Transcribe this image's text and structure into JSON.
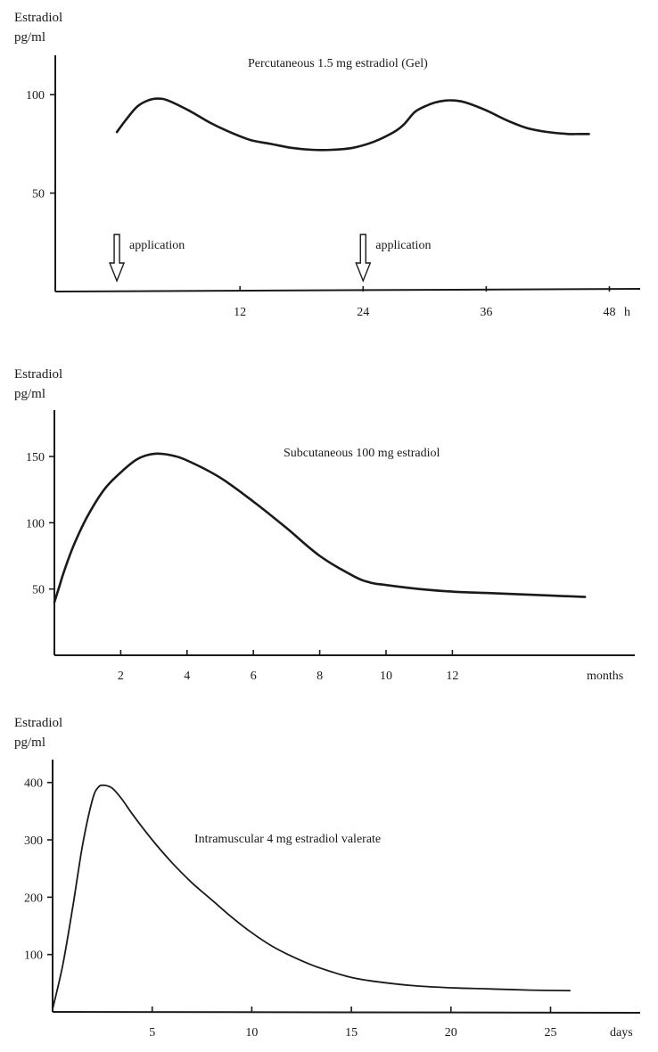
{
  "chart_data": [
    {
      "type": "line",
      "title": "Percutaneous 1.5 mg estradiol (Gel)",
      "ylabel_line1": "Estradiol",
      "ylabel_line2": "pg/ml",
      "xunit": "h",
      "xlim": [
        -6,
        51
      ],
      "ylim": [
        0,
        120
      ],
      "xticks": [
        12,
        24,
        36,
        48
      ],
      "yticks": [
        50,
        100
      ],
      "series": [
        {
          "x": [
            0,
            1,
            2,
            3,
            4,
            5,
            7,
            9,
            11,
            13,
            15,
            17,
            19,
            21,
            23,
            25,
            27,
            28,
            29,
            30,
            31,
            32,
            33,
            34,
            36,
            38,
            40,
            42,
            44,
            45,
            46
          ],
          "y": [
            81,
            88,
            94,
            97,
            98,
            97,
            92,
            86,
            81,
            77,
            75,
            73,
            72,
            72,
            73,
            76,
            81,
            85,
            91,
            94,
            96,
            97,
            97,
            96,
            92,
            87,
            83,
            81,
            80,
            80,
            80
          ]
        }
      ],
      "annotations": [
        {
          "text": "application",
          "x": 0
        },
        {
          "text": "application",
          "x": 24
        }
      ]
    },
    {
      "type": "line",
      "title": "Subcutaneous 100 mg estradiol",
      "ylabel_line1": "Estradiol",
      "ylabel_line2": "pg/ml",
      "xunit": "months",
      "xlim": [
        0,
        17.5
      ],
      "ylim": [
        0,
        185
      ],
      "xticks": [
        2,
        4,
        6,
        8,
        10,
        12
      ],
      "yticks": [
        50,
        100,
        150
      ],
      "series": [
        {
          "x": [
            0,
            0.15,
            0.3,
            0.6,
            1,
            1.5,
            2,
            2.5,
            3,
            3.5,
            4,
            5,
            6,
            7,
            8,
            9,
            9.5,
            10,
            11,
            12,
            13,
            14,
            15,
            16
          ],
          "y": [
            40,
            52,
            64,
            84,
            105,
            125,
            138,
            148,
            152,
            151,
            147,
            134,
            116,
            96,
            75,
            60,
            55,
            53,
            50,
            48,
            47,
            46,
            45,
            44
          ]
        }
      ]
    },
    {
      "type": "line",
      "title": "Intramuscular 4 mg estradiol valerate",
      "ylabel_line1": "Estradiol",
      "ylabel_line2": "pg/ml",
      "xunit": "days",
      "xlim": [
        0,
        29.5
      ],
      "ylim": [
        0,
        440
      ],
      "xticks": [
        5,
        10,
        15,
        20,
        25
      ],
      "yticks": [
        100,
        200,
        300,
        400
      ],
      "series": [
        {
          "x": [
            0,
            0.5,
            1,
            1.5,
            2,
            2.3,
            2.6,
            3,
            3.5,
            4,
            5,
            6,
            7,
            8,
            9,
            10,
            11,
            12,
            13,
            14,
            15,
            16,
            18,
            20,
            22,
            24,
            26
          ],
          "y": [
            5,
            80,
            180,
            290,
            370,
            392,
            395,
            390,
            370,
            345,
            300,
            260,
            225,
            195,
            165,
            138,
            115,
            97,
            82,
            70,
            60,
            54,
            46,
            42,
            40,
            38,
            37
          ]
        }
      ]
    }
  ]
}
